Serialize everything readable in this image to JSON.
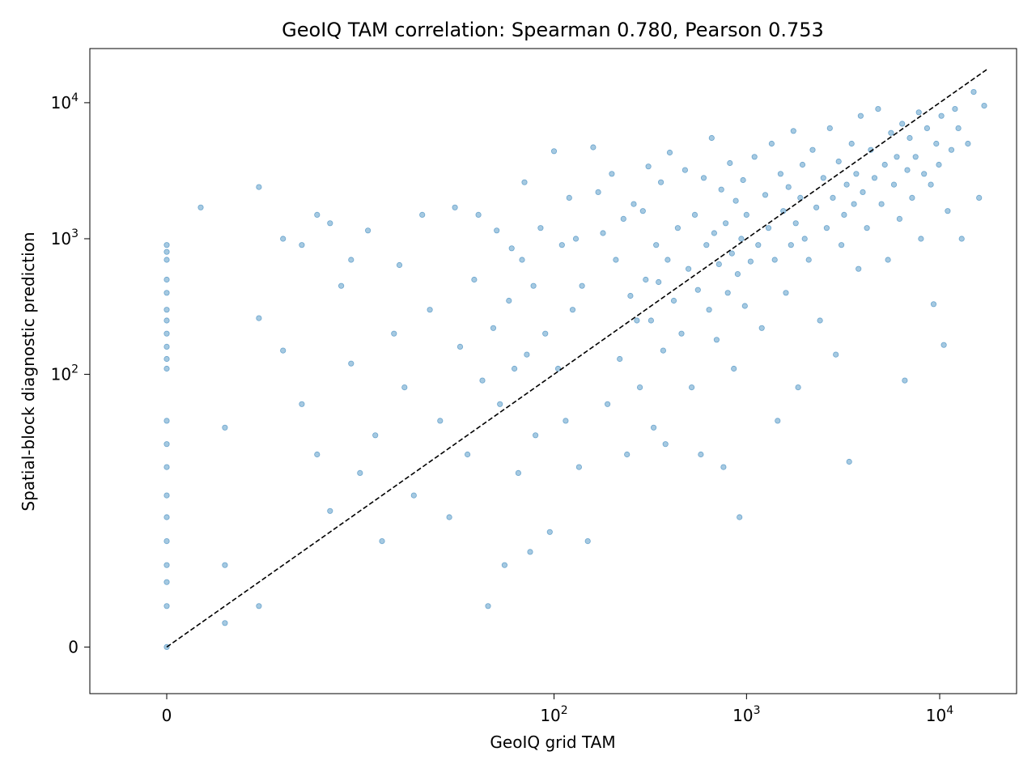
{
  "chart_data": {
    "type": "scatter",
    "title": "GeoIQ TAM correlation: Spearman 0.780, Pearson 0.753",
    "xlabel": "GeoIQ grid TAM",
    "ylabel": "Spatial-block diagnostic prediction",
    "x_scale": "symlog",
    "y_scale": "symlog",
    "xlim": [
      -1.5,
      25000
    ],
    "ylim": [
      -1.2,
      25000
    ],
    "x_ticks": [
      {
        "value": 0,
        "base": "0",
        "exp": ""
      },
      {
        "value": 100,
        "base": "10",
        "exp": "2"
      },
      {
        "value": 1000,
        "base": "10",
        "exp": "3"
      },
      {
        "value": 10000,
        "base": "10",
        "exp": "4"
      }
    ],
    "y_ticks": [
      {
        "value": 0,
        "base": "0",
        "exp": ""
      },
      {
        "value": 100,
        "base": "10",
        "exp": "2"
      },
      {
        "value": 1000,
        "base": "10",
        "exp": "3"
      },
      {
        "value": 10000,
        "base": "10",
        "exp": "4"
      }
    ],
    "reference_line": {
      "style": "dashed",
      "color": "#000000",
      "x": [
        0,
        17500
      ],
      "y": [
        0,
        17500
      ]
    },
    "series": [
      {
        "color": "#1f77b4",
        "alpha": 0.4,
        "points": [
          [
            0,
            0
          ],
          [
            0,
            1
          ],
          [
            0,
            2
          ],
          [
            0,
            3
          ],
          [
            0,
            5
          ],
          [
            0,
            8
          ],
          [
            0,
            12
          ],
          [
            0,
            20
          ],
          [
            0,
            30
          ],
          [
            0,
            45
          ],
          [
            0,
            110
          ],
          [
            0,
            130
          ],
          [
            0,
            160
          ],
          [
            0,
            200
          ],
          [
            0,
            250
          ],
          [
            0,
            300
          ],
          [
            0,
            400
          ],
          [
            0,
            500
          ],
          [
            0,
            700
          ],
          [
            0,
            800
          ],
          [
            0,
            900
          ],
          [
            0.5,
            1700
          ],
          [
            1,
            0.5
          ],
          [
            1,
            3
          ],
          [
            1,
            40
          ],
          [
            2,
            2400
          ],
          [
            2,
            1
          ],
          [
            3,
            1000
          ],
          [
            4,
            900
          ],
          [
            5,
            1500
          ],
          [
            6,
            1300
          ],
          [
            8,
            700
          ],
          [
            2,
            260
          ],
          [
            3,
            150
          ],
          [
            4,
            60
          ],
          [
            5,
            25
          ],
          [
            6,
            9
          ],
          [
            7,
            450
          ],
          [
            8,
            120
          ],
          [
            9,
            18
          ],
          [
            10,
            1150
          ],
          [
            11,
            35
          ],
          [
            12,
            5
          ],
          [
            14,
            200
          ],
          [
            15,
            640
          ],
          [
            16,
            80
          ],
          [
            18,
            12
          ],
          [
            20,
            1500
          ],
          [
            22,
            300
          ],
          [
            25,
            45
          ],
          [
            28,
            8
          ],
          [
            30,
            1700
          ],
          [
            32,
            160
          ],
          [
            35,
            25
          ],
          [
            38,
            500
          ],
          [
            40,
            1500
          ],
          [
            42,
            90
          ],
          [
            45,
            1
          ],
          [
            48,
            220
          ],
          [
            50,
            1150
          ],
          [
            52,
            60
          ],
          [
            55,
            3
          ],
          [
            58,
            350
          ],
          [
            60,
            850
          ],
          [
            62,
            110
          ],
          [
            65,
            18
          ],
          [
            68,
            700
          ],
          [
            70,
            2600
          ],
          [
            72,
            140
          ],
          [
            75,
            4
          ],
          [
            78,
            450
          ],
          [
            80,
            35
          ],
          [
            85,
            1200
          ],
          [
            90,
            200
          ],
          [
            95,
            6
          ],
          [
            100,
            4400
          ],
          [
            105,
            110
          ],
          [
            110,
            900
          ],
          [
            115,
            45
          ],
          [
            120,
            2000
          ],
          [
            125,
            300
          ],
          [
            130,
            1000
          ],
          [
            135,
            20
          ],
          [
            140,
            450
          ],
          [
            150,
            5
          ],
          [
            160,
            4700
          ],
          [
            170,
            2200
          ],
          [
            180,
            1100
          ],
          [
            190,
            60
          ],
          [
            200,
            3000
          ],
          [
            210,
            700
          ],
          [
            220,
            130
          ],
          [
            230,
            1400
          ],
          [
            240,
            25
          ],
          [
            250,
            380
          ],
          [
            260,
            1800
          ],
          [
            270,
            250
          ],
          [
            280,
            80
          ],
          [
            290,
            1600
          ],
          [
            300,
            500
          ],
          [
            310,
            3400
          ],
          [
            320,
            250
          ],
          [
            330,
            40
          ],
          [
            340,
            900
          ],
          [
            350,
            480
          ],
          [
            360,
            2600
          ],
          [
            370,
            150
          ],
          [
            380,
            30
          ],
          [
            390,
            700
          ],
          [
            400,
            4300
          ],
          [
            420,
            350
          ],
          [
            440,
            1200
          ],
          [
            460,
            200
          ],
          [
            480,
            3200
          ],
          [
            500,
            600
          ],
          [
            520,
            80
          ],
          [
            540,
            1500
          ],
          [
            560,
            420
          ],
          [
            580,
            25
          ],
          [
            600,
            2800
          ],
          [
            620,
            900
          ],
          [
            640,
            300
          ],
          [
            660,
            5500
          ],
          [
            680,
            1100
          ],
          [
            700,
            180
          ],
          [
            720,
            650
          ],
          [
            740,
            2300
          ],
          [
            760,
            20
          ],
          [
            780,
            1300
          ],
          [
            800,
            400
          ],
          [
            820,
            3600
          ],
          [
            840,
            780
          ],
          [
            860,
            110
          ],
          [
            880,
            1900
          ],
          [
            900,
            550
          ],
          [
            920,
            8
          ],
          [
            940,
            1000
          ],
          [
            960,
            2700
          ],
          [
            980,
            320
          ],
          [
            1000,
            1500
          ],
          [
            1050,
            680
          ],
          [
            1100,
            4000
          ],
          [
            1150,
            900
          ],
          [
            1200,
            220
          ],
          [
            1250,
            2100
          ],
          [
            1300,
            1200
          ],
          [
            1350,
            5000
          ],
          [
            1400,
            700
          ],
          [
            1450,
            45
          ],
          [
            1500,
            3000
          ],
          [
            1550,
            1600
          ],
          [
            1600,
            400
          ],
          [
            1650,
            2400
          ],
          [
            1700,
            900
          ],
          [
            1750,
            6200
          ],
          [
            1800,
            1300
          ],
          [
            1850,
            80
          ],
          [
            1900,
            2000
          ],
          [
            1950,
            3500
          ],
          [
            2000,
            1000
          ],
          [
            2100,
            700
          ],
          [
            2200,
            4500
          ],
          [
            2300,
            1700
          ],
          [
            2400,
            250
          ],
          [
            2500,
            2800
          ],
          [
            2600,
            1200
          ],
          [
            2700,
            6500
          ],
          [
            2800,
            2000
          ],
          [
            2900,
            140
          ],
          [
            3000,
            3700
          ],
          [
            3100,
            900
          ],
          [
            3200,
            1500
          ],
          [
            3300,
            2500
          ],
          [
            3400,
            22
          ],
          [
            3500,
            5000
          ],
          [
            3600,
            1800
          ],
          [
            3700,
            3000
          ],
          [
            3800,
            600
          ],
          [
            3900,
            8000
          ],
          [
            4000,
            2200
          ],
          [
            4200,
            1200
          ],
          [
            4400,
            4500
          ],
          [
            4600,
            2800
          ],
          [
            4800,
            9000
          ],
          [
            5000,
            1800
          ],
          [
            5200,
            3500
          ],
          [
            5400,
            700
          ],
          [
            5600,
            6000
          ],
          [
            5800,
            2500
          ],
          [
            6000,
            4000
          ],
          [
            6200,
            1400
          ],
          [
            6400,
            7000
          ],
          [
            6600,
            90
          ],
          [
            6800,
            3200
          ],
          [
            7000,
            5500
          ],
          [
            7200,
            2000
          ],
          [
            7500,
            4000
          ],
          [
            7800,
            8500
          ],
          [
            8000,
            1000
          ],
          [
            8300,
            3000
          ],
          [
            8600,
            6500
          ],
          [
            9000,
            2500
          ],
          [
            9300,
            330
          ],
          [
            9600,
            5000
          ],
          [
            9900,
            3500
          ],
          [
            10200,
            8000
          ],
          [
            10500,
            165
          ],
          [
            11000,
            1600
          ],
          [
            11500,
            4500
          ],
          [
            12000,
            9000
          ],
          [
            12500,
            6500
          ],
          [
            13000,
            1000
          ],
          [
            14000,
            5000
          ],
          [
            15000,
            12000
          ],
          [
            16000,
            2000
          ],
          [
            17000,
            9500
          ]
        ]
      }
    ]
  }
}
